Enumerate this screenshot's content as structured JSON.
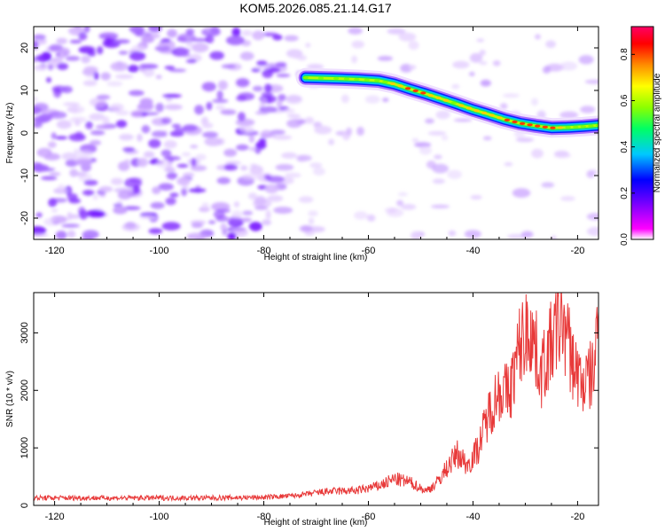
{
  "title": "KOM5.2026.085.21.14.G17",
  "chart_data": [
    {
      "type": "heatmap",
      "title": "KOM5.2026.085.21.14.G17",
      "xlabel": "Height of straight line (km)",
      "ylabel": "Frequency (Hz)",
      "xlim": [
        -124,
        -16
      ],
      "ylim": [
        -25,
        25
      ],
      "xticks": [
        -120,
        -100,
        -80,
        -60,
        -40,
        -20
      ],
      "yticks": [
        -20,
        -10,
        0,
        10,
        20
      ],
      "colorbar": {
        "label": "Normalized spectral amplitude",
        "range": [
          0,
          0.92
        ],
        "ticks": [
          "0.0",
          "0.2",
          "0.4",
          "0.6",
          "0.8"
        ],
        "tick_values": [
          0,
          0.2,
          0.4,
          0.6,
          0.8
        ],
        "colors": [
          "#ffffff",
          "#ff00ff",
          "#6a00ff",
          "#0000ff",
          "#00c8ff",
          "#00ff64",
          "#8cff00",
          "#ffff00",
          "#ff8c00",
          "#ff0000",
          "#ff0066"
        ]
      },
      "signal_track": {
        "description": "strong frequency ridge",
        "x": [
          -72,
          -66,
          -62,
          -58,
          -55,
          -52,
          -49,
          -46,
          -43,
          -40,
          -37,
          -34,
          -31,
          -28,
          -25,
          -22,
          -19,
          -16
        ],
        "frequency": [
          13,
          12.8,
          12.6,
          12.3,
          11.5,
          10.3,
          9.2,
          8,
          6.8,
          5.5,
          4.4,
          3.2,
          2.3,
          1.7,
          1.2,
          1.3,
          1.5,
          1.8
        ],
        "amplitude": [
          0.5,
          0.45,
          0.5,
          0.55,
          0.7,
          0.75,
          0.72,
          0.65,
          0.6,
          0.7,
          0.65,
          0.72,
          0.75,
          0.8,
          0.78,
          0.6,
          0.55,
          0.6
        ]
      }
    },
    {
      "type": "line",
      "xlabel": "Height of straight line (km)",
      "ylabel": "SNR (10 * v/v)",
      "xlim": [
        -124,
        -16
      ],
      "ylim": [
        0,
        3700
      ],
      "xticks": [
        -120,
        -100,
        -80,
        -60,
        -40,
        -20
      ],
      "yticks": [
        0,
        1000,
        2000,
        3000
      ],
      "series": [
        {
          "name": "SNR",
          "color": "#e83a3a",
          "x": [
            -124,
            -110,
            -100,
            -90,
            -80,
            -74,
            -68,
            -62,
            -58,
            -55,
            -52,
            -49,
            -47,
            -45,
            -43,
            -41,
            -39,
            -37,
            -35,
            -33,
            -31,
            -29,
            -27,
            -25,
            -23,
            -21,
            -19,
            -17,
            -16
          ],
          "y": [
            130,
            130,
            130,
            130,
            140,
            170,
            240,
            260,
            340,
            460,
            400,
            250,
            380,
            650,
            900,
            700,
            1000,
            1600,
            2000,
            1950,
            2800,
            3100,
            2300,
            2800,
            3300,
            2500,
            2100,
            2300,
            3200
          ]
        }
      ]
    }
  ]
}
